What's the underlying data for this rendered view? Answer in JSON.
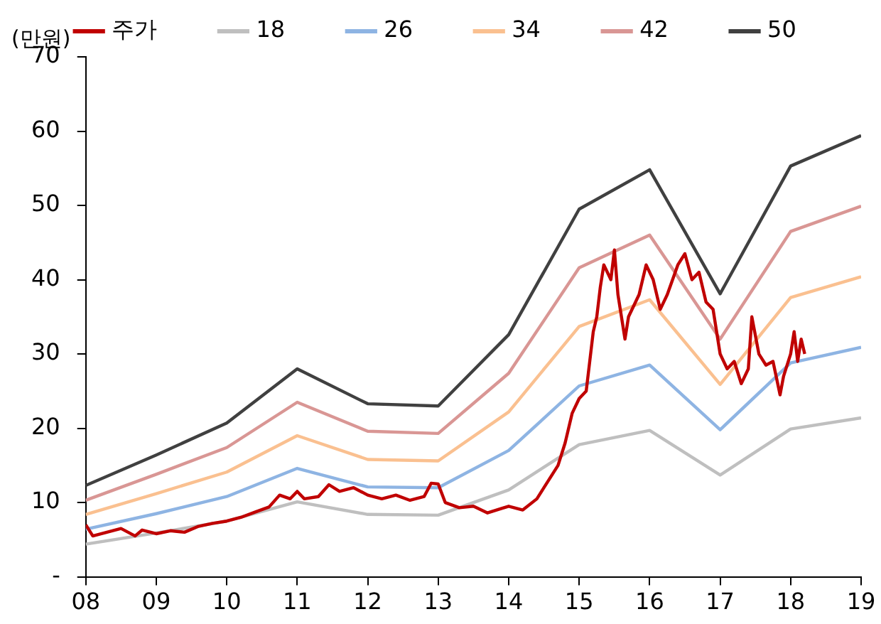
{
  "chart_data": {
    "type": "line",
    "ylabel": "(만원)",
    "legend": "top",
    "grid": false,
    "marker": "none",
    "line_style": "solid",
    "xlim": [
      2008,
      2019
    ],
    "xticks": [
      {
        "value": 2008,
        "label": "08"
      },
      {
        "value": 2009,
        "label": "09"
      },
      {
        "value": 2010,
        "label": "10"
      },
      {
        "value": 2011,
        "label": "11"
      },
      {
        "value": 2012,
        "label": "12"
      },
      {
        "value": 2013,
        "label": "13"
      },
      {
        "value": 2014,
        "label": "14"
      },
      {
        "value": 2015,
        "label": "15"
      },
      {
        "value": 2016,
        "label": "16"
      },
      {
        "value": 2017,
        "label": "17"
      },
      {
        "value": 2018,
        "label": "18"
      },
      {
        "value": 2019,
        "label": "19"
      }
    ],
    "ylim": [
      0,
      70
    ],
    "yticks": [
      {
        "value": 0,
        "label": "-"
      },
      10,
      20,
      30,
      40,
      50,
      60,
      70
    ],
    "x": [
      2008,
      2009,
      2010,
      2011,
      2012,
      2013,
      2014,
      2015,
      2016,
      2017,
      2018,
      2019
    ],
    "series": [
      {
        "name": "주가",
        "color": "#c00000",
        "x": [
          2008,
          2008.1,
          2008.3,
          2008.5,
          2008.7,
          2008.8,
          2009,
          2009.2,
          2009.4,
          2009.6,
          2009.8,
          2010,
          2010.2,
          2010.4,
          2010.6,
          2010.75,
          2010.9,
          2011,
          2011.1,
          2011.3,
          2011.45,
          2011.6,
          2011.8,
          2012,
          2012.2,
          2012.4,
          2012.6,
          2012.8,
          2012.9,
          2013,
          2013.1,
          2013.3,
          2013.5,
          2013.7,
          2013.9,
          2014,
          2014.2,
          2014.4,
          2014.5,
          2014.7,
          2014.8,
          2014.9,
          2015,
          2015.1,
          2015.15,
          2015.2,
          2015.25,
          2015.3,
          2015.35,
          2015.45,
          2015.5,
          2015.55,
          2015.65,
          2015.7,
          2015.85,
          2015.95,
          2016.05,
          2016.15,
          2016.25,
          2016.4,
          2016.5,
          2016.6,
          2016.7,
          2016.8,
          2016.9,
          2017,
          2017.1,
          2017.2,
          2017.3,
          2017.4,
          2017.45,
          2017.55,
          2017.65,
          2017.75,
          2017.85,
          2017.9,
          2018,
          2018.05,
          2018.1,
          2018.15,
          2018.2
        ],
        "values": [
          7,
          5.5,
          6,
          6.5,
          5.5,
          6.3,
          5.8,
          6.2,
          6,
          6.8,
          7.2,
          7.5,
          8,
          8.7,
          9.4,
          11,
          10.5,
          11.5,
          10.5,
          10.8,
          12.4,
          11.5,
          12,
          11,
          10.5,
          11,
          10.3,
          10.8,
          12.6,
          12.5,
          10,
          9.3,
          9.5,
          8.6,
          9.2,
          9.5,
          9,
          10.5,
          12,
          15,
          18,
          22,
          24,
          25,
          29,
          33,
          35,
          39,
          42,
          40,
          44,
          38,
          32,
          35,
          38,
          42,
          40,
          36,
          38,
          42,
          43.5,
          40,
          41,
          37,
          36,
          30,
          28,
          29,
          26,
          28,
          35,
          30,
          28.5,
          29,
          24.5,
          27,
          30,
          33,
          29,
          32,
          30
        ]
      },
      {
        "name": "18",
        "color": "#bfbfbf",
        "values": [
          4.4,
          5.9,
          7.5,
          10.1,
          8.4,
          8.3,
          11.7,
          17.8,
          19.7,
          13.7,
          19.9,
          21.4
        ]
      },
      {
        "name": "26",
        "color": "#8eb4e3",
        "values": [
          6.4,
          8.5,
          10.8,
          14.6,
          12.1,
          12.0,
          17.0,
          25.7,
          28.5,
          19.8,
          28.8,
          30.9
        ]
      },
      {
        "name": "34",
        "color": "#fac090",
        "values": [
          8.4,
          11.2,
          14.1,
          19.0,
          15.8,
          15.6,
          22.2,
          33.7,
          37.3,
          25.9,
          37.6,
          40.4
        ]
      },
      {
        "name": "42",
        "color": "#d99694",
        "values": [
          10.3,
          13.8,
          17.4,
          23.5,
          19.6,
          19.3,
          27.4,
          41.6,
          46.0,
          32.0,
          46.5,
          49.9
        ]
      },
      {
        "name": "50",
        "color": "#404040",
        "values": [
          12.3,
          16.4,
          20.7,
          28.0,
          23.3,
          23.0,
          32.6,
          49.5,
          54.8,
          38.1,
          55.3,
          59.4
        ]
      }
    ]
  }
}
